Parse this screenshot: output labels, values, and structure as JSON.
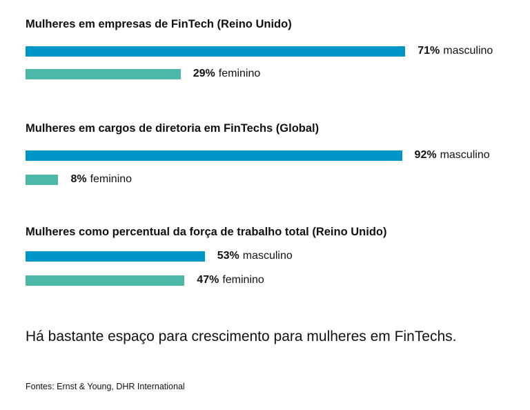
{
  "chart_data": [
    {
      "type": "bar",
      "title": "Mulheres em empresas de FinTech (Reino Unido)",
      "orientation": "horizontal",
      "categories": [
        "masculino",
        "feminino"
      ],
      "values": [
        71,
        29
      ],
      "value_labels": [
        "71%",
        "29%"
      ],
      "colors": [
        "#0096c8",
        "#4db8a8"
      ]
    },
    {
      "type": "bar",
      "title": "Mulheres em cargos de diretoria em FinTechs (Global)",
      "orientation": "horizontal",
      "categories": [
        "masculino",
        "feminino"
      ],
      "values": [
        92,
        8
      ],
      "value_labels": [
        "92%",
        "8%"
      ],
      "colors": [
        "#0096c8",
        "#4db8a8"
      ]
    },
    {
      "type": "bar",
      "title": "Mulheres como percentual da força de trabalho total (Reino Unido)",
      "orientation": "horizontal",
      "categories": [
        "masculino",
        "feminino"
      ],
      "values": [
        53,
        47
      ],
      "value_labels": [
        "53%",
        "47%"
      ],
      "colors": [
        "#0096c8",
        "#4db8a8"
      ]
    }
  ],
  "note": "Há bastante espaço para crescimento para mulheres em FinTechs.",
  "source": "Fontes: Ernst & Young, DHR International"
}
